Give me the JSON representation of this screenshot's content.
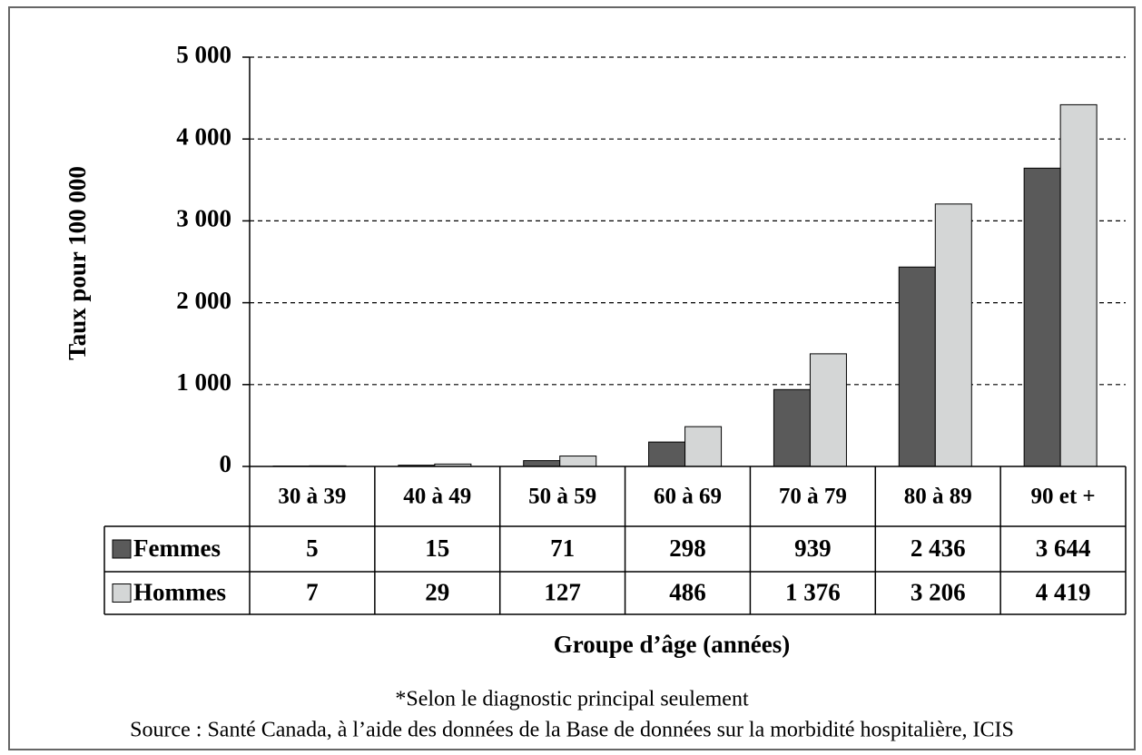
{
  "chart_data": {
    "type": "bar",
    "y_label": "Taux pour 100 000",
    "x_label": "Groupe d’âge (années)",
    "notes": [
      "*Selon le diagnostic principal seulement",
      "Source : Santé Canada, à l’aide des données de la Base de données sur la morbidité hospitalière, ICIS"
    ],
    "categories": [
      "30 à 39",
      "40 à 49",
      "50 à 59",
      "60 à 69",
      "70 à 79",
      "80 à 89",
      "90 et +"
    ],
    "series": [
      {
        "name": "Femmes",
        "color": "#5a5a5a",
        "values": [
          5,
          15,
          71,
          298,
          939,
          2436,
          3644
        ],
        "value_labels": [
          "5",
          "15",
          "71",
          "298",
          "939",
          "2 436",
          "3 644"
        ]
      },
      {
        "name": "Hommes",
        "color": "#d4d6d6",
        "values": [
          7,
          29,
          127,
          486,
          1376,
          3206,
          4419
        ],
        "value_labels": [
          "7",
          "29",
          "127",
          "486",
          "1 376",
          "3 206",
          "4 419"
        ]
      }
    ],
    "ylim": [
      0,
      5000
    ],
    "yticks": [
      0,
      {
        "value": 1000,
        "label": "1 000"
      },
      {
        "value": 2000,
        "label": "2 000"
      },
      {
        "value": 3000,
        "label": "3 000"
      },
      {
        "value": 4000,
        "label": "4 000"
      },
      {
        "value": 5000,
        "label": "5 000"
      }
    ],
    "grid": true
  }
}
